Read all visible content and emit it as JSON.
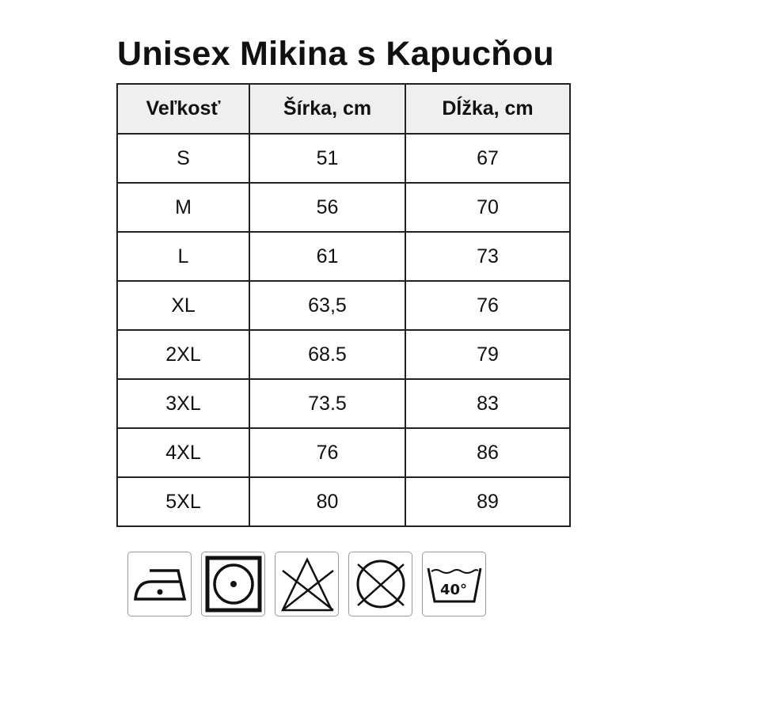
{
  "title": "Unisex Mikina s Kapucňou",
  "table": {
    "headers": [
      "Veľkosť",
      "Šírka, cm",
      "Dĺžka, cm"
    ],
    "rows": [
      [
        "S",
        "51",
        "67"
      ],
      [
        "M",
        "56",
        "70"
      ],
      [
        "L",
        "61",
        "73"
      ],
      [
        "XL",
        "63,5",
        "76"
      ],
      [
        "2XL",
        "68.5",
        "79"
      ],
      [
        "3XL",
        "73.5",
        "83"
      ],
      [
        "4XL",
        "76",
        "86"
      ],
      [
        "5XL",
        "80",
        "89"
      ]
    ]
  },
  "care_icons": [
    {
      "name": "iron-low-temp-icon"
    },
    {
      "name": "tumble-dry-low-icon"
    },
    {
      "name": "do-not-bleach-icon"
    },
    {
      "name": "do-not-dry-clean-icon"
    },
    {
      "name": "wash-40-icon",
      "label": "40°"
    }
  ]
}
